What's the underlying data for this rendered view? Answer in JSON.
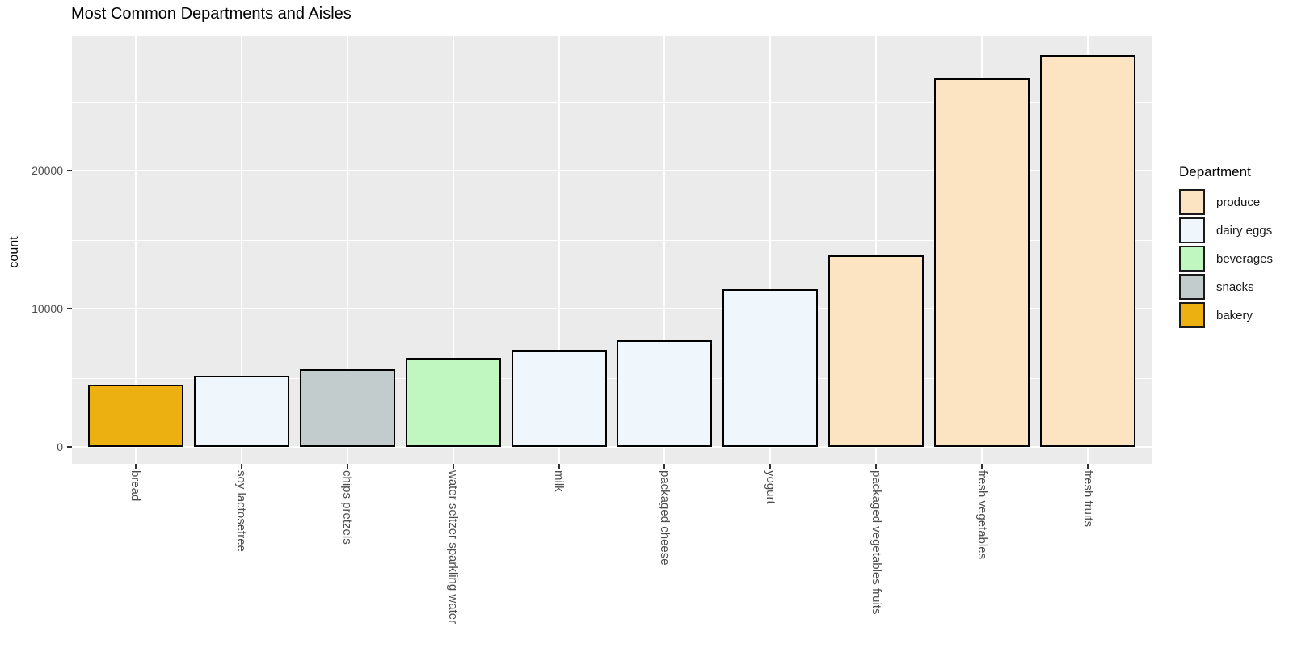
{
  "title": "Most Common Departments and Aisles",
  "chart_data": {
    "type": "bar",
    "title": "Most Common Departments and Aisles",
    "xlabel": "",
    "ylabel": "count",
    "categories": [
      "bread",
      "soy lactosefree",
      "chips pretzels",
      "water seltzer sparkling water",
      "milk",
      "packaged cheese",
      "yogurt",
      "packaged vegetables fruits",
      "fresh vegetables",
      "fresh fruits"
    ],
    "values": [
      4500,
      5150,
      5600,
      6430,
      7020,
      7720,
      11400,
      13860,
      26670,
      28360
    ],
    "departments": [
      "bakery",
      "dairy eggs",
      "snacks",
      "beverages",
      "dairy eggs",
      "dairy eggs",
      "dairy eggs",
      "produce",
      "produce",
      "produce"
    ],
    "yticks": [
      {
        "value": 0,
        "label": "0"
      },
      {
        "value": 10000,
        "label": "10000"
      },
      {
        "value": 20000,
        "label": "20000"
      }
    ],
    "minor_gridlines": [
      5000,
      15000,
      25000
    ],
    "ylim": [
      -1420,
      29780
    ],
    "grid": "on",
    "legend": {
      "title": "Department",
      "position": "right",
      "entries": [
        {
          "label": "produce",
          "color": "#FCE3C2"
        },
        {
          "label": "dairy eggs",
          "color": "#EFF6FC"
        },
        {
          "label": "beverages",
          "color": "#C0F7C0"
        },
        {
          "label": "snacks",
          "color": "#C2CCCC"
        },
        {
          "label": "bakery",
          "color": "#ECB110"
        }
      ]
    },
    "colors": {
      "panel_background": "#EBEBEB",
      "gridline": "#FFFFFF",
      "bar_border": "#000000",
      "axis_text": "#4D4D4D",
      "tick_mark": "#333333",
      "title_text": "#000000"
    }
  }
}
